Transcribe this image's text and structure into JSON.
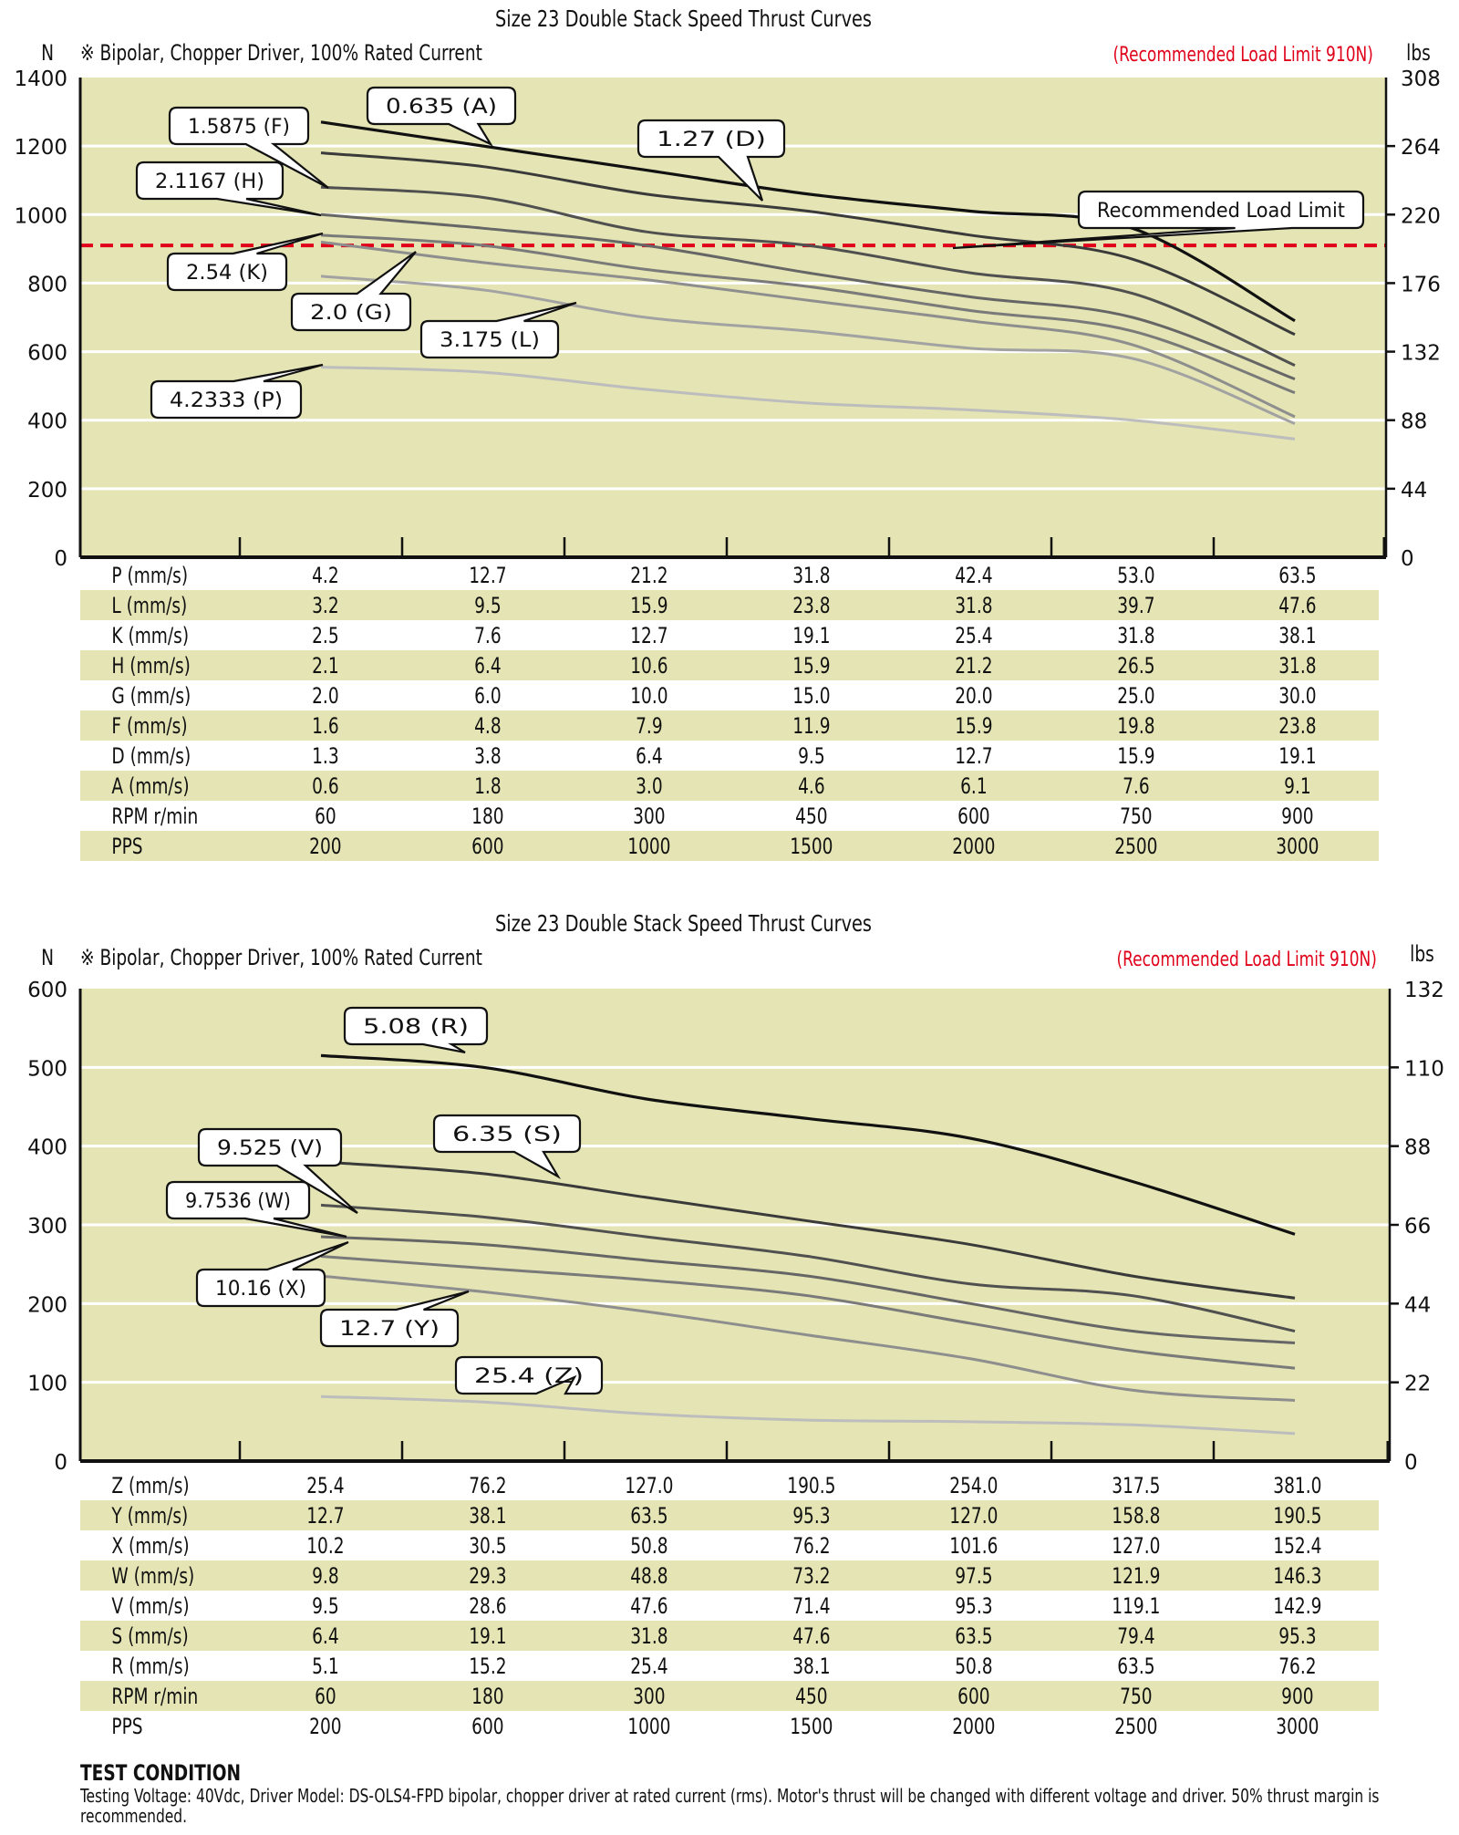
{
  "chart_data": [
    {
      "type": "line",
      "title": "Size 23 Double Stack Speed Thrust Curves",
      "subtitle": "※ Bipolar, Chopper Driver, 100% Rated Current",
      "annotation": "(Recommended Load Limit 910N)",
      "ylabel_left": "N",
      "ylabel_right": "lbs",
      "ylim": [
        0,
        1400
      ],
      "yticks_left": [
        "1400",
        "1200",
        "1000",
        "800",
        "600",
        "400",
        "200",
        "0"
      ],
      "yticks_right": [
        "308",
        "264",
        "220",
        "176",
        "132",
        "88",
        "44",
        "0"
      ],
      "grid": true,
      "reference_line": {
        "label": "Recommended Load Limit",
        "value": 910,
        "color": "#e0001a"
      },
      "x_columns": 7,
      "series": [
        {
          "name": "0.635 (A)",
          "key": "A",
          "color": "#111111",
          "values": [
            1270,
            1200,
            1130,
            1060,
            1010,
            960,
            690
          ]
        },
        {
          "name": "1.27 (D)",
          "key": "D",
          "color": "#3a3a3a",
          "values": [
            1180,
            1140,
            1060,
            1010,
            940,
            870,
            650
          ]
        },
        {
          "name": "1.5875 (F)",
          "key": "F",
          "color": "#505050",
          "values": [
            1080,
            1050,
            950,
            910,
            830,
            770,
            560
          ]
        },
        {
          "name": "2.1167 (H)",
          "key": "H",
          "color": "#666666",
          "values": [
            1000,
            960,
            910,
            830,
            760,
            700,
            520
          ]
        },
        {
          "name": "2.54 (K)",
          "key": "K",
          "color": "#7a7a7a",
          "values": [
            940,
            910,
            840,
            790,
            720,
            660,
            480
          ]
        },
        {
          "name": "2.0 (G)",
          "key": "G",
          "color": "#8e8e8e",
          "values": [
            920,
            860,
            810,
            750,
            690,
            620,
            410
          ]
        },
        {
          "name": "3.175 (L)",
          "key": "L",
          "color": "#a2a2a2",
          "values": [
            820,
            780,
            700,
            660,
            610,
            580,
            390
          ]
        },
        {
          "name": "4.2333 (P)",
          "key": "P",
          "color": "#bdbdbd",
          "values": [
            555,
            540,
            490,
            450,
            430,
            400,
            345
          ]
        }
      ],
      "table": {
        "rows": [
          {
            "label": "P (mm/s)",
            "values": [
              "4.2",
              "12.7",
              "21.2",
              "31.8",
              "42.4",
              "53.0",
              "63.5"
            ]
          },
          {
            "label": "L (mm/s)",
            "values": [
              "3.2",
              "9.5",
              "15.9",
              "23.8",
              "31.8",
              "39.7",
              "47.6"
            ]
          },
          {
            "label": "K (mm/s)",
            "values": [
              "2.5",
              "7.6",
              "12.7",
              "19.1",
              "25.4",
              "31.8",
              "38.1"
            ]
          },
          {
            "label": "H (mm/s)",
            "values": [
              "2.1",
              "6.4",
              "10.6",
              "15.9",
              "21.2",
              "26.5",
              "31.8"
            ]
          },
          {
            "label": "G (mm/s)",
            "values": [
              "2.0",
              "6.0",
              "10.0",
              "15.0",
              "20.0",
              "25.0",
              "30.0"
            ]
          },
          {
            "label": "F (mm/s)",
            "values": [
              "1.6",
              "4.8",
              "7.9",
              "11.9",
              "15.9",
              "19.8",
              "23.8"
            ]
          },
          {
            "label": "D (mm/s)",
            "values": [
              "1.3",
              "3.8",
              "6.4",
              "9.5",
              "12.7",
              "15.9",
              "19.1"
            ]
          },
          {
            "label": "A (mm/s)",
            "values": [
              "0.6",
              "1.8",
              "3.0",
              "4.6",
              "6.1",
              "7.6",
              "9.1"
            ]
          },
          {
            "label": "RPM r/min",
            "values": [
              "60",
              "180",
              "300",
              "450",
              "600",
              "750",
              "900"
            ]
          },
          {
            "label": "PPS",
            "values": [
              "200",
              "600",
              "1000",
              "1500",
              "2000",
              "2500",
              "3000"
            ]
          }
        ]
      }
    },
    {
      "type": "line",
      "title": "Size 23 Double Stack Speed Thrust Curves",
      "subtitle": "※ Bipolar, Chopper Driver, 100% Rated Current",
      "annotation": "(Recommended Load Limit 910N)",
      "ylabel_left": "N",
      "ylabel_right": "lbs",
      "ylim": [
        0,
        600
      ],
      "yticks_left": [
        "600",
        "500",
        "400",
        "300",
        "200",
        "100",
        "0"
      ],
      "yticks_right": [
        "132",
        "110",
        "88",
        "66",
        "44",
        "22",
        "0"
      ],
      "grid": true,
      "x_columns": 7,
      "series": [
        {
          "name": "5.08 (R)",
          "key": "R",
          "color": "#111111",
          "values": [
            515,
            500,
            460,
            435,
            410,
            355,
            288
          ]
        },
        {
          "name": "6.35 (S)",
          "key": "S",
          "color": "#3a3a3a",
          "values": [
            380,
            365,
            335,
            305,
            275,
            235,
            207
          ]
        },
        {
          "name": "9.525 (V)",
          "key": "V",
          "color": "#505050",
          "values": [
            325,
            310,
            285,
            260,
            225,
            210,
            165
          ]
        },
        {
          "name": "9.7536 (W)",
          "key": "W",
          "color": "#666666",
          "values": [
            285,
            275,
            255,
            235,
            200,
            165,
            150
          ]
        },
        {
          "name": "10.16 (X)",
          "key": "X",
          "color": "#7a7a7a",
          "values": [
            260,
            245,
            230,
            210,
            175,
            140,
            118
          ]
        },
        {
          "name": "12.7 (Y)",
          "key": "Y",
          "color": "#8e8e8e",
          "values": [
            235,
            215,
            190,
            160,
            130,
            90,
            77
          ]
        },
        {
          "name": "25.4 (Z)",
          "key": "Z",
          "color": "#bdbdbd",
          "values": [
            82,
            75,
            60,
            52,
            50,
            46,
            35
          ]
        }
      ],
      "table": {
        "rows": [
          {
            "label": "Z (mm/s)",
            "values": [
              "25.4",
              "76.2",
              "127.0",
              "190.5",
              "254.0",
              "317.5",
              "381.0"
            ]
          },
          {
            "label": "Y (mm/s)",
            "values": [
              "12.7",
              "38.1",
              "63.5",
              "95.3",
              "127.0",
              "158.8",
              "190.5"
            ]
          },
          {
            "label": "X (mm/s)",
            "values": [
              "10.2",
              "30.5",
              "50.8",
              "76.2",
              "101.6",
              "127.0",
              "152.4"
            ]
          },
          {
            "label": "W (mm/s)",
            "values": [
              "9.8",
              "29.3",
              "48.8",
              "73.2",
              "97.5",
              "121.9",
              "146.3"
            ]
          },
          {
            "label": "V (mm/s)",
            "values": [
              "9.5",
              "28.6",
              "47.6",
              "71.4",
              "95.3",
              "119.1",
              "142.9"
            ]
          },
          {
            "label": "S (mm/s)",
            "values": [
              "6.4",
              "19.1",
              "31.8",
              "47.6",
              "63.5",
              "79.4",
              "95.3"
            ]
          },
          {
            "label": "R (mm/s)",
            "values": [
              "5.1",
              "15.2",
              "25.4",
              "38.1",
              "50.8",
              "63.5",
              "76.2"
            ]
          },
          {
            "label": "RPM r/min",
            "values": [
              "60",
              "180",
              "300",
              "450",
              "600",
              "750",
              "900"
            ]
          },
          {
            "label": "PPS",
            "values": [
              "200",
              "600",
              "1000",
              "1500",
              "2000",
              "2500",
              "3000"
            ]
          }
        ]
      }
    }
  ],
  "test_condition": {
    "heading": "TEST CONDITION",
    "text": "Testing Voltage: 40Vdc, Driver Model: DS-OLS4-FPD bipolar, chopper driver at rated current (rms). Motor's thrust will be changed with different voltage and driver. 50% thrust margin is recommended."
  },
  "colors": {
    "plot_bg": "#e4e4b4",
    "grid": "#ffffff",
    "limit": "#e0001a"
  }
}
